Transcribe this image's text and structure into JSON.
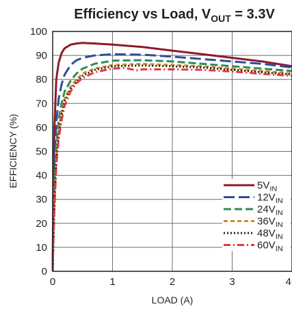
{
  "chart_data": {
    "type": "line",
    "title": "Efficiency vs Load, V",
    "title_sub": "OUT",
    "title_tail": " = 3.3V",
    "xlabel": "LOAD (A)",
    "ylabel": "EFFICIENCY (%)",
    "xlim": [
      0,
      4
    ],
    "ylim": [
      0,
      100
    ],
    "x_ticks": [
      "0",
      "1",
      "2",
      "3",
      "4"
    ],
    "y_ticks": [
      "0",
      "10",
      "20",
      "30",
      "40",
      "50",
      "60",
      "70",
      "80",
      "90",
      "100"
    ],
    "grid": true,
    "legend_position": "bottom-right",
    "legend_subscript": "IN",
    "series": [
      {
        "name": "5V",
        "color": "#8b1a2b",
        "dash": "solid",
        "points": [
          [
            0,
            0
          ],
          [
            0.01,
            30
          ],
          [
            0.03,
            60
          ],
          [
            0.06,
            80
          ],
          [
            0.1,
            87
          ],
          [
            0.15,
            91
          ],
          [
            0.2,
            93
          ],
          [
            0.3,
            94.5
          ],
          [
            0.4,
            95
          ],
          [
            0.5,
            95.2
          ],
          [
            0.7,
            95
          ],
          [
            1.0,
            94.5
          ],
          [
            1.5,
            93.5
          ],
          [
            2.0,
            92
          ],
          [
            2.5,
            90.5
          ],
          [
            3.0,
            89
          ],
          [
            3.5,
            87.5
          ],
          [
            4.0,
            85.5
          ]
        ]
      },
      {
        "name": "12V",
        "color": "#2d4e9c",
        "dash": "long-dash",
        "points": [
          [
            0,
            0
          ],
          [
            0.01,
            20
          ],
          [
            0.03,
            45
          ],
          [
            0.06,
            62
          ],
          [
            0.1,
            72
          ],
          [
            0.15,
            78
          ],
          [
            0.2,
            82
          ],
          [
            0.3,
            86
          ],
          [
            0.4,
            88
          ],
          [
            0.5,
            89
          ],
          [
            0.7,
            90
          ],
          [
            1.0,
            90.5
          ],
          [
            1.5,
            90.3
          ],
          [
            2.0,
            89.5
          ],
          [
            2.5,
            88.5
          ],
          [
            3.0,
            87.5
          ],
          [
            3.5,
            86.5
          ],
          [
            4.0,
            85
          ]
        ]
      },
      {
        "name": "24V",
        "color": "#2e8b57",
        "dash": "dash",
        "points": [
          [
            0,
            0
          ],
          [
            0.01,
            15
          ],
          [
            0.03,
            35
          ],
          [
            0.06,
            52
          ],
          [
            0.1,
            63
          ],
          [
            0.15,
            70
          ],
          [
            0.2,
            75
          ],
          [
            0.3,
            79.5
          ],
          [
            0.4,
            82.5
          ],
          [
            0.5,
            84.5
          ],
          [
            0.7,
            86.5
          ],
          [
            1.0,
            87.8
          ],
          [
            1.5,
            88
          ],
          [
            2.0,
            87.5
          ],
          [
            2.5,
            86.5
          ],
          [
            3.0,
            85.5
          ],
          [
            3.5,
            84.5
          ],
          [
            4.0,
            83.5
          ]
        ]
      },
      {
        "name": "36V",
        "color": "#d4882a",
        "dash": "short-dash",
        "points": [
          [
            0,
            0
          ],
          [
            0.01,
            12
          ],
          [
            0.03,
            30
          ],
          [
            0.06,
            48
          ],
          [
            0.1,
            59
          ],
          [
            0.15,
            67
          ],
          [
            0.2,
            72
          ],
          [
            0.3,
            77
          ],
          [
            0.4,
            80
          ],
          [
            0.5,
            82.5
          ],
          [
            0.7,
            84.5
          ],
          [
            1.0,
            86
          ],
          [
            1.5,
            86.5
          ],
          [
            2.0,
            86
          ],
          [
            2.5,
            85.5
          ],
          [
            3.0,
            84.5
          ],
          [
            3.5,
            83.5
          ],
          [
            4.0,
            82.5
          ]
        ]
      },
      {
        "name": "48V",
        "color": "#231f20",
        "dash": "dot",
        "points": [
          [
            0,
            0
          ],
          [
            0.01,
            11
          ],
          [
            0.03,
            28
          ],
          [
            0.06,
            46
          ],
          [
            0.1,
            57
          ],
          [
            0.15,
            65
          ],
          [
            0.2,
            71
          ],
          [
            0.3,
            76
          ],
          [
            0.4,
            79
          ],
          [
            0.5,
            81.5
          ],
          [
            0.7,
            84
          ],
          [
            1.0,
            85.5
          ],
          [
            1.5,
            85.8
          ],
          [
            2.0,
            85.5
          ],
          [
            2.5,
            85
          ],
          [
            3.0,
            84
          ],
          [
            3.5,
            83
          ],
          [
            4.0,
            82
          ]
        ]
      },
      {
        "name": "60V",
        "color": "#e0383e",
        "dash": "dash-dot",
        "points": [
          [
            0,
            0
          ],
          [
            0.01,
            10
          ],
          [
            0.03,
            26
          ],
          [
            0.06,
            44
          ],
          [
            0.1,
            55
          ],
          [
            0.15,
            63
          ],
          [
            0.2,
            69
          ],
          [
            0.3,
            75
          ],
          [
            0.4,
            78.5
          ],
          [
            0.5,
            80.5
          ],
          [
            0.7,
            83
          ],
          [
            1.0,
            84.5
          ],
          [
            1.2,
            84.8
          ],
          [
            1.4,
            83.8
          ],
          [
            1.5,
            84.2
          ],
          [
            2.0,
            84.2
          ],
          [
            2.5,
            84
          ],
          [
            3.0,
            83.3
          ],
          [
            3.5,
            82.3
          ],
          [
            4.0,
            81.5
          ]
        ]
      }
    ]
  }
}
